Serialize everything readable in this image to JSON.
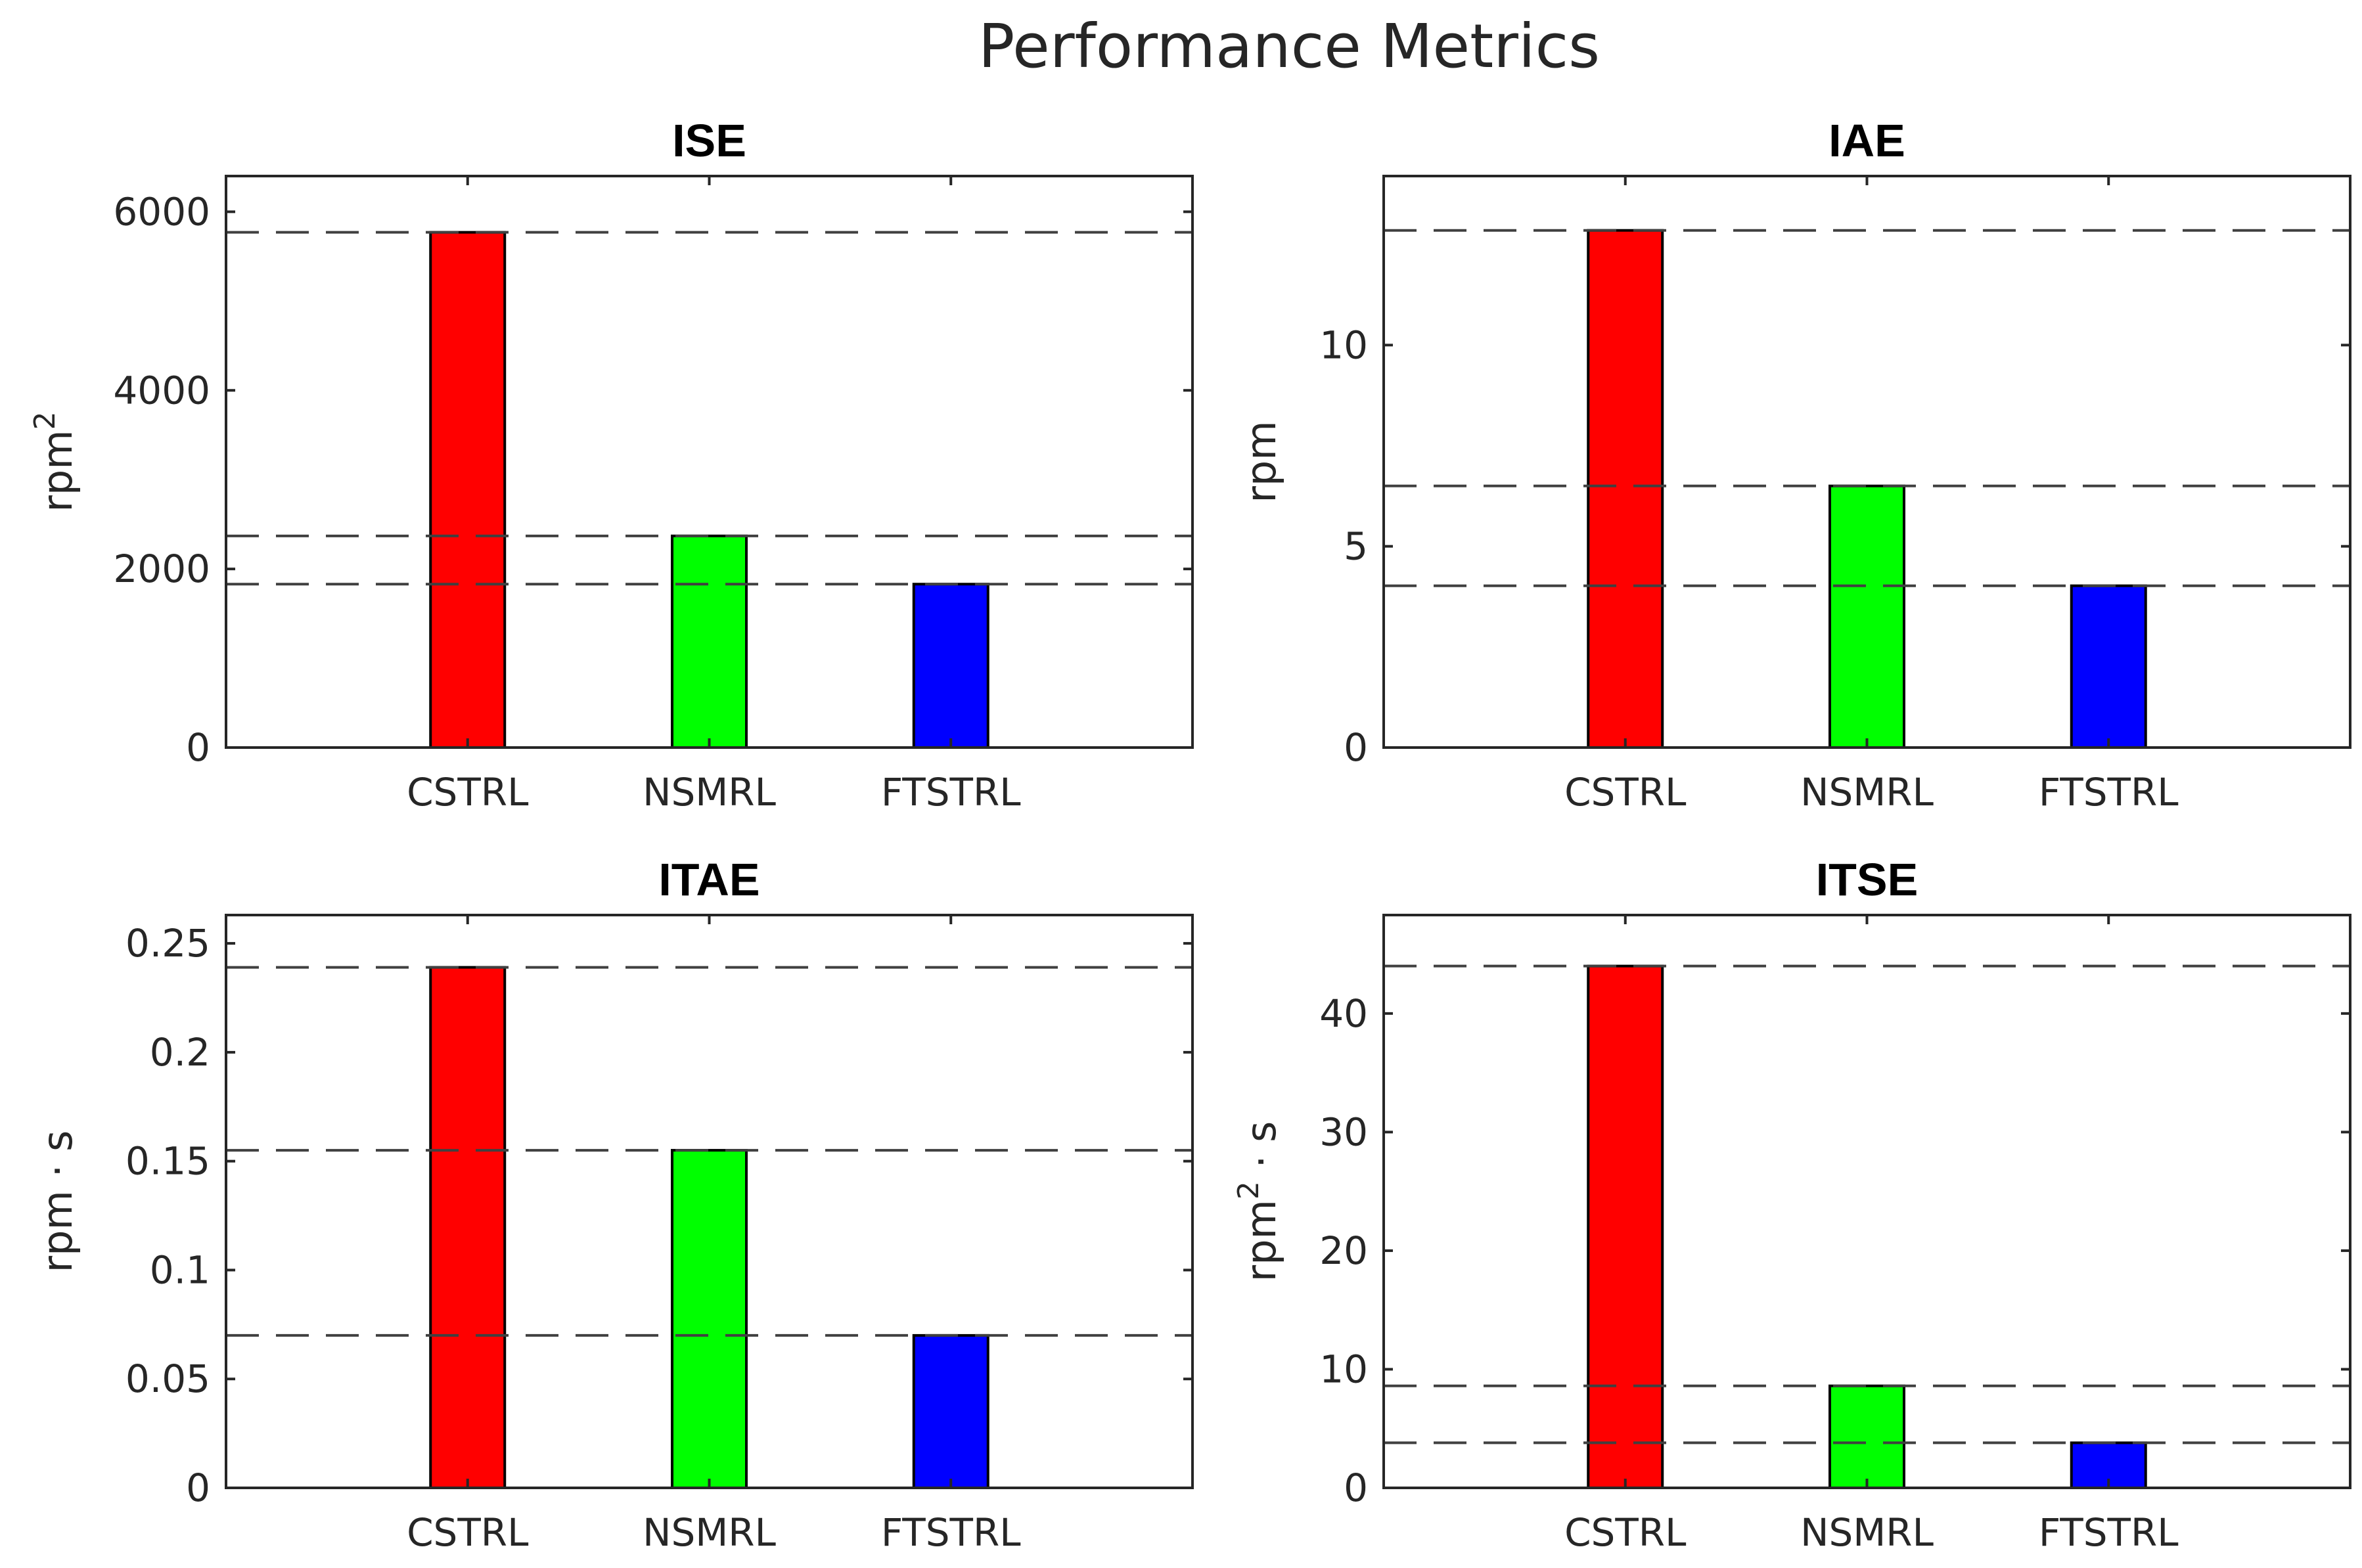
{
  "figure_title": "Performance Metrics",
  "chart_data": [
    {
      "type": "bar",
      "title": "ISE",
      "categories": [
        "CSTRL",
        "NSMRL",
        "FTSTRL"
      ],
      "values": [
        5770,
        2370,
        1830
      ],
      "colors": [
        "#ff0000",
        "#00ff00",
        "#0000ff"
      ],
      "ylabel": {
        "base": "rpm",
        "sup": "2",
        "tail": ""
      },
      "ylim": [
        0,
        6400
      ],
      "yticks": [
        0,
        2000,
        4000,
        6000
      ],
      "ytick_labels": [
        "0",
        "2000",
        "4000",
        "6000"
      ],
      "reference_lines": [
        5770,
        2370,
        1830
      ],
      "grid": false
    },
    {
      "type": "bar",
      "title": "IAE",
      "categories": [
        "CSTRL",
        "NSMRL",
        "FTSTRL"
      ],
      "values": [
        12.85,
        6.5,
        4.02
      ],
      "colors": [
        "#ff0000",
        "#00ff00",
        "#0000ff"
      ],
      "ylabel": {
        "base": "rpm",
        "sup": "",
        "tail": ""
      },
      "ylim": [
        0,
        14.2
      ],
      "yticks": [
        0,
        5,
        10
      ],
      "ytick_labels": [
        "0",
        "5",
        "10"
      ],
      "reference_lines": [
        12.85,
        6.5,
        4.02
      ],
      "grid": false
    },
    {
      "type": "bar",
      "title": "ITAE",
      "categories": [
        "CSTRL",
        "NSMRL",
        "FTSTRL"
      ],
      "values": [
        0.239,
        0.155,
        0.07
      ],
      "colors": [
        "#ff0000",
        "#00ff00",
        "#0000ff"
      ],
      "ylabel": {
        "base": "rpm · s",
        "sup": "",
        "tail": ""
      },
      "ylim": [
        0,
        0.263
      ],
      "yticks": [
        0,
        0.05,
        0.1,
        0.15,
        0.2,
        0.25
      ],
      "ytick_labels": [
        "0",
        "0.05",
        "0.1",
        "0.15",
        "0.2",
        "0.25"
      ],
      "reference_lines": [
        0.239,
        0.155,
        0.07
      ],
      "grid": false
    },
    {
      "type": "bar",
      "title": "ITSE",
      "categories": [
        "CSTRL",
        "NSMRL",
        "FTSTRL"
      ],
      "values": [
        44.0,
        8.6,
        3.8
      ],
      "colors": [
        "#ff0000",
        "#00ff00",
        "#0000ff"
      ],
      "ylabel": {
        "base": "rpm",
        "sup": "2",
        "tail": " · s"
      },
      "ylim": [
        0,
        48.3
      ],
      "yticks": [
        0,
        10,
        20,
        30,
        40
      ],
      "ytick_labels": [
        "0",
        "10",
        "20",
        "30",
        "40"
      ],
      "reference_lines": [
        44.0,
        8.6,
        3.8
      ],
      "grid": false
    }
  ]
}
